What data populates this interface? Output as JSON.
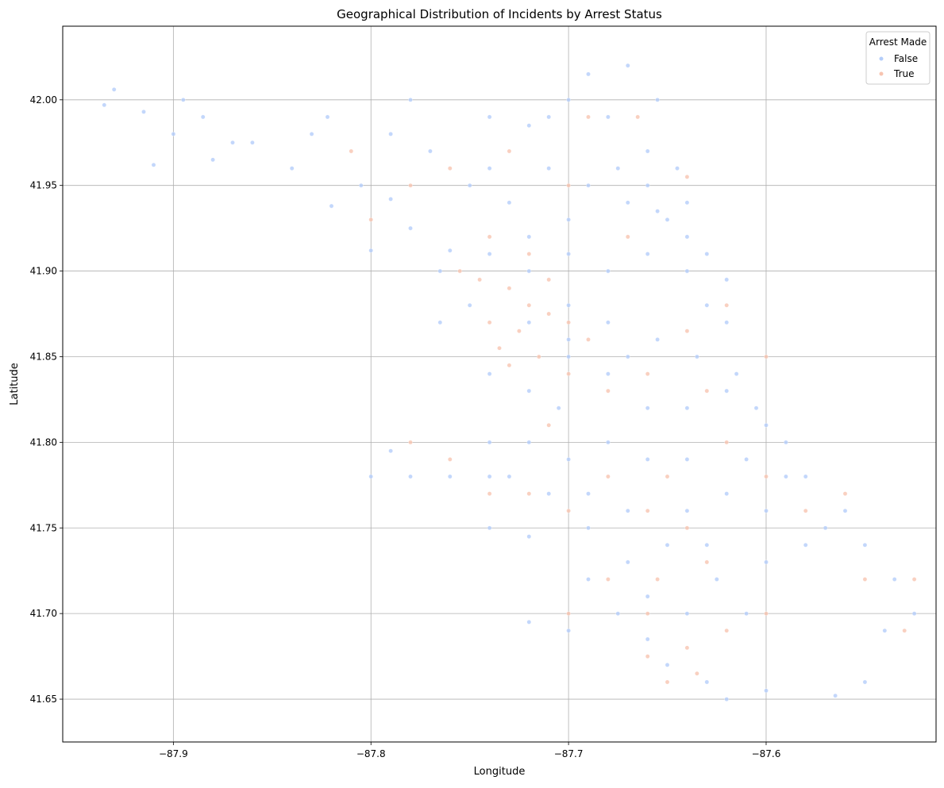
{
  "chart_data": {
    "type": "scatter",
    "title": "Geographical Distribution of Incidents by Arrest Status",
    "xlabel": "Longitude",
    "ylabel": "Latitude",
    "xlim": [
      -87.956,
      -87.514
    ],
    "ylim": [
      41.625,
      42.043
    ],
    "xticks": [
      -87.9,
      -87.8,
      -87.7,
      -87.6
    ],
    "xtick_labels": [
      "−87.9",
      "−87.8",
      "−87.7",
      "−87.6"
    ],
    "yticks": [
      41.65,
      41.7,
      41.75,
      41.8,
      41.85,
      41.9,
      41.95,
      42.0
    ],
    "ytick_labels": [
      "41.65",
      "41.70",
      "41.75",
      "41.80",
      "41.85",
      "41.90",
      "41.95",
      "42.00"
    ],
    "grid": true,
    "legend": {
      "title": "Arrest Made",
      "placement": "top-right",
      "entries": [
        {
          "label": "False",
          "color": "#b4cdfa"
        },
        {
          "label": "True",
          "color": "#f7c4b0"
        }
      ]
    },
    "series": [
      {
        "name": "False",
        "color": "#b4cdfa",
        "points": [
          [
            -87.935,
            41.997
          ],
          [
            -87.93,
            42.006
          ],
          [
            -87.915,
            41.993
          ],
          [
            -87.91,
            41.962
          ],
          [
            -87.9,
            41.98
          ],
          [
            -87.895,
            42.0
          ],
          [
            -87.885,
            41.99
          ],
          [
            -87.88,
            41.965
          ],
          [
            -87.87,
            41.975
          ],
          [
            -87.86,
            41.975
          ],
          [
            -87.84,
            41.96
          ],
          [
            -87.83,
            41.98
          ],
          [
            -87.822,
            41.99
          ],
          [
            -87.805,
            41.95
          ],
          [
            -87.79,
            41.942
          ],
          [
            -87.82,
            41.938
          ],
          [
            -87.8,
            41.912
          ],
          [
            -87.78,
            41.925
          ],
          [
            -87.76,
            41.912
          ],
          [
            -87.74,
            41.96
          ],
          [
            -87.72,
            41.985
          ],
          [
            -87.7,
            42.0
          ],
          [
            -87.69,
            42.015
          ],
          [
            -87.67,
            42.02
          ],
          [
            -87.655,
            42.0
          ],
          [
            -87.66,
            41.97
          ],
          [
            -87.645,
            41.96
          ],
          [
            -87.64,
            41.94
          ],
          [
            -87.63,
            41.91
          ],
          [
            -87.62,
            41.895
          ],
          [
            -87.62,
            41.87
          ],
          [
            -87.635,
            41.85
          ],
          [
            -87.62,
            41.83
          ],
          [
            -87.605,
            41.82
          ],
          [
            -87.59,
            41.8
          ],
          [
            -87.58,
            41.78
          ],
          [
            -87.56,
            41.76
          ],
          [
            -87.55,
            41.74
          ],
          [
            -87.535,
            41.72
          ],
          [
            -87.525,
            41.7
          ],
          [
            -87.54,
            41.69
          ],
          [
            -87.55,
            41.66
          ],
          [
            -87.565,
            41.652
          ],
          [
            -87.6,
            41.655
          ],
          [
            -87.62,
            41.65
          ],
          [
            -87.63,
            41.66
          ],
          [
            -87.65,
            41.67
          ],
          [
            -87.66,
            41.685
          ],
          [
            -87.675,
            41.7
          ],
          [
            -87.7,
            41.69
          ],
          [
            -87.72,
            41.695
          ],
          [
            -87.69,
            41.72
          ],
          [
            -87.67,
            41.73
          ],
          [
            -87.69,
            41.75
          ],
          [
            -87.72,
            41.745
          ],
          [
            -87.74,
            41.75
          ],
          [
            -87.74,
            41.78
          ],
          [
            -87.76,
            41.78
          ],
          [
            -87.78,
            41.78
          ],
          [
            -87.8,
            41.78
          ],
          [
            -87.79,
            41.795
          ],
          [
            -87.74,
            41.8
          ],
          [
            -87.72,
            41.8
          ],
          [
            -87.7,
            41.79
          ],
          [
            -87.68,
            41.8
          ],
          [
            -87.66,
            41.79
          ],
          [
            -87.64,
            41.79
          ],
          [
            -87.62,
            41.77
          ],
          [
            -87.6,
            41.76
          ],
          [
            -87.64,
            41.76
          ],
          [
            -87.65,
            41.74
          ],
          [
            -87.625,
            41.72
          ],
          [
            -87.61,
            41.7
          ],
          [
            -87.64,
            41.7
          ],
          [
            -87.66,
            41.71
          ],
          [
            -87.705,
            41.82
          ],
          [
            -87.72,
            41.83
          ],
          [
            -87.74,
            41.84
          ],
          [
            -87.7,
            41.85
          ],
          [
            -87.68,
            41.84
          ],
          [
            -87.66,
            41.82
          ],
          [
            -87.64,
            41.82
          ],
          [
            -87.655,
            41.86
          ],
          [
            -87.68,
            41.87
          ],
          [
            -87.7,
            41.88
          ],
          [
            -87.72,
            41.87
          ],
          [
            -87.75,
            41.88
          ],
          [
            -87.765,
            41.87
          ],
          [
            -87.765,
            41.9
          ],
          [
            -87.74,
            41.91
          ],
          [
            -87.72,
            41.92
          ],
          [
            -87.7,
            41.91
          ],
          [
            -87.68,
            41.9
          ],
          [
            -87.66,
            41.91
          ],
          [
            -87.65,
            41.93
          ],
          [
            -87.67,
            41.94
          ],
          [
            -87.69,
            41.95
          ],
          [
            -87.71,
            41.96
          ],
          [
            -87.73,
            41.94
          ],
          [
            -87.75,
            41.95
          ],
          [
            -87.77,
            41.97
          ],
          [
            -87.79,
            41.98
          ],
          [
            -87.78,
            42.0
          ],
          [
            -87.74,
            41.99
          ],
          [
            -87.71,
            41.99
          ],
          [
            -87.68,
            41.99
          ],
          [
            -87.675,
            41.96
          ],
          [
            -87.66,
            41.95
          ],
          [
            -87.7,
            41.93
          ],
          [
            -87.72,
            41.9
          ],
          [
            -87.7,
            41.86
          ],
          [
            -87.67,
            41.85
          ],
          [
            -87.73,
            41.78
          ],
          [
            -87.71,
            41.77
          ],
          [
            -87.69,
            41.77
          ],
          [
            -87.67,
            41.76
          ],
          [
            -87.63,
            41.74
          ],
          [
            -87.6,
            41.73
          ],
          [
            -87.58,
            41.74
          ],
          [
            -87.57,
            41.75
          ],
          [
            -87.59,
            41.78
          ],
          [
            -87.61,
            41.79
          ],
          [
            -87.6,
            41.81
          ],
          [
            -87.615,
            41.84
          ],
          [
            -87.63,
            41.88
          ],
          [
            -87.64,
            41.9
          ],
          [
            -87.64,
            41.92
          ],
          [
            -87.655,
            41.935
          ]
        ]
      },
      {
        "name": "True",
        "color": "#f7c4b0",
        "points": [
          [
            -87.73,
            41.89
          ],
          [
            -87.72,
            41.88
          ],
          [
            -87.71,
            41.875
          ],
          [
            -87.725,
            41.865
          ],
          [
            -87.715,
            41.85
          ],
          [
            -87.73,
            41.845
          ],
          [
            -87.74,
            41.87
          ],
          [
            -87.745,
            41.895
          ],
          [
            -87.71,
            41.895
          ],
          [
            -87.7,
            41.87
          ],
          [
            -87.69,
            41.86
          ],
          [
            -87.72,
            41.91
          ],
          [
            -87.74,
            41.92
          ],
          [
            -87.755,
            41.9
          ],
          [
            -87.735,
            41.855
          ],
          [
            -87.7,
            41.84
          ],
          [
            -87.68,
            41.83
          ],
          [
            -87.66,
            41.84
          ],
          [
            -87.64,
            41.865
          ],
          [
            -87.63,
            41.83
          ],
          [
            -87.65,
            41.78
          ],
          [
            -87.66,
            41.76
          ],
          [
            -87.64,
            41.75
          ],
          [
            -87.63,
            41.73
          ],
          [
            -87.655,
            41.72
          ],
          [
            -87.66,
            41.7
          ],
          [
            -87.64,
            41.68
          ],
          [
            -87.635,
            41.665
          ],
          [
            -87.65,
            41.66
          ],
          [
            -87.66,
            41.675
          ],
          [
            -87.62,
            41.69
          ],
          [
            -87.6,
            41.7
          ],
          [
            -87.68,
            41.78
          ],
          [
            -87.7,
            41.76
          ],
          [
            -87.72,
            41.77
          ],
          [
            -87.74,
            41.77
          ],
          [
            -87.62,
            41.8
          ],
          [
            -87.6,
            41.78
          ],
          [
            -87.58,
            41.76
          ],
          [
            -87.55,
            41.72
          ],
          [
            -87.53,
            41.69
          ],
          [
            -87.525,
            41.72
          ],
          [
            -87.56,
            41.77
          ],
          [
            -87.6,
            41.85
          ],
          [
            -87.62,
            41.88
          ],
          [
            -87.67,
            41.92
          ],
          [
            -87.7,
            41.95
          ],
          [
            -87.73,
            41.97
          ],
          [
            -87.76,
            41.96
          ],
          [
            -87.78,
            41.95
          ],
          [
            -87.8,
            41.93
          ],
          [
            -87.81,
            41.97
          ],
          [
            -87.69,
            41.99
          ],
          [
            -87.665,
            41.99
          ],
          [
            -87.64,
            41.955
          ],
          [
            -87.78,
            41.8
          ],
          [
            -87.76,
            41.79
          ],
          [
            -87.68,
            41.72
          ],
          [
            -87.7,
            41.7
          ],
          [
            -87.71,
            41.81
          ]
        ]
      }
    ]
  }
}
